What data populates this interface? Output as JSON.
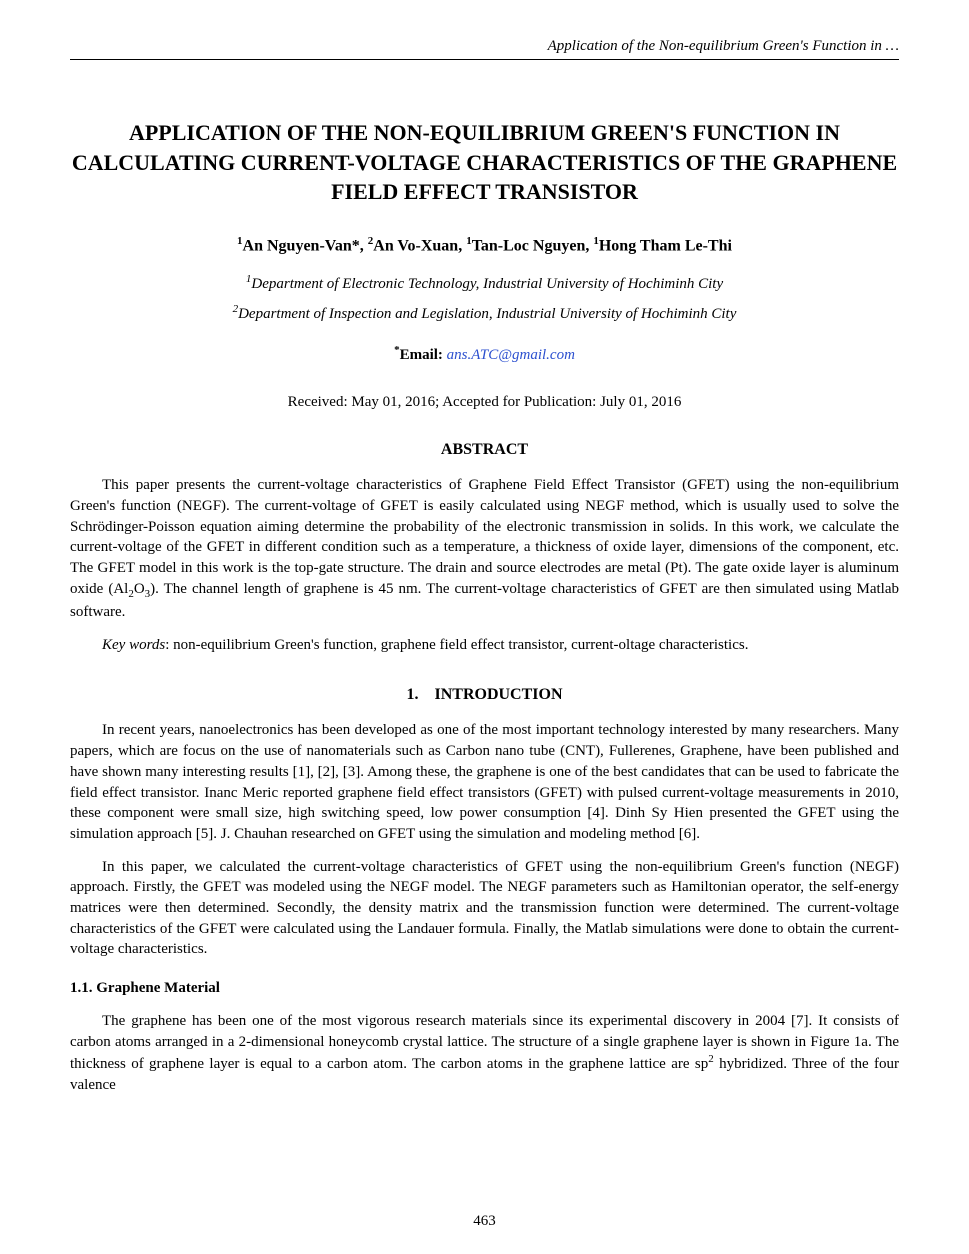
{
  "running_header": "Application of the Non-equilibrium Green's Function in …",
  "title": "APPLICATION OF THE NON-EQUILIBRIUM GREEN'S FUNCTION IN CALCULATING CURRENT-VOLTAGE CHARACTERISTICS OF THE GRAPHENE FIELD EFFECT TRANSISTOR",
  "authors_html": "<sup>1</sup>An Nguyen-Van*, <sup>2</sup>An Vo-Xuan, <sup>1</sup>Tan-Loc Nguyen, <sup>1</sup>Hong Tham Le-Thi",
  "affiliations_html": "<sup>1</sup>Department of Electronic Technology, Industrial University of Hochiminh City<br><sup>2</sup>Department of Inspection and Legislation, Industrial University of Hochiminh City",
  "email_label": "Email:",
  "email_value": "ans.ATC@gmail.com",
  "dates": "Received: May 01, 2016; Accepted for Publication: July 01, 2016",
  "abstract_heading": "ABSTRACT",
  "abstract_body_html": "This paper presents the current-voltage characteristics of Graphene Field Effect Transistor (GFET) using the non-equilibrium Green's function (NEGF). The current-voltage of GFET is easily calculated using NEGF method, which is usually used to solve the Schrödinger-Poisson equation aiming determine the probability of the electronic transmission in solids. In this work, we calculate the current-voltage of the GFET in different condition such as a temperature, a thickness of oxide layer, dimensions of the component, etc. The GFET model in this work is the top-gate structure. The drain and source electrodes are metal (Pt). The gate oxide layer is aluminum oxide (Al<sub class='chem'>2</sub>O<sub class='chem'>3</sub>). The channel length of graphene is 45 nm. The current-voltage characteristics of GFET are then simulated using Matlab software.",
  "keywords_label": "Key words",
  "keywords_text": ": non-equilibrium Green's function, graphene field effect transistor, current-oltage characteristics.",
  "section1_heading": "1. INTRODUCTION",
  "intro_para1": "In recent years, nanoelectronics has been developed as one of the most important technology interested by many researchers. Many papers, which are focus on the use of nanomaterials such as Carbon nano tube (CNT), Fullerenes, Graphene, have been published and have shown many interesting results [1], [2], [3]. Among these, the graphene is one of the best candidates that can be used to fabricate the field effect transistor. Inanc Meric reported graphene field effect transistors (GFET) with pulsed current-voltage measurements in 2010, these component were small size, high switching speed, low power consumption [4]. Dinh Sy Hien presented the GFET using the simulation approach [5]. J. Chauhan researched on GFET using the simulation and modeling method [6].",
  "intro_para2": "In this paper, we calculated the current-voltage characteristics of GFET using the non-equilibrium Green's function (NEGF) approach. Firstly, the GFET was modeled using the NEGF model. The NEGF parameters such as Hamiltonian operator, the self-energy matrices were then determined. Secondly, the density matrix and the transmission function were determined. The current-voltage characteristics of the GFET were calculated using the Landauer formula. Finally, the Matlab simulations were done to obtain the current-voltage characteristics.",
  "subsection_1_1": "1.1. Graphene Material",
  "para_1_1_html": "The graphene has been one of the most vigorous research materials since its experimental discovery in 2004 [7]. It consists of carbon atoms arranged in a 2-dimensional honeycomb crystal lattice. The structure of a single graphene layer is shown in Figure 1a. The thickness of graphene layer is equal to a carbon atom. The carbon atoms in the graphene lattice are sp<sup class='chem'>2</sup> hybridized. Three of the four valence",
  "page_number": "463",
  "colors": {
    "text": "#000000",
    "background": "#ffffff",
    "link": "#2b4fcf",
    "rule": "#000000"
  },
  "typography": {
    "family": "Times New Roman",
    "title_size_pt": 16,
    "body_size_pt": 11,
    "heading_size_pt": 12
  }
}
